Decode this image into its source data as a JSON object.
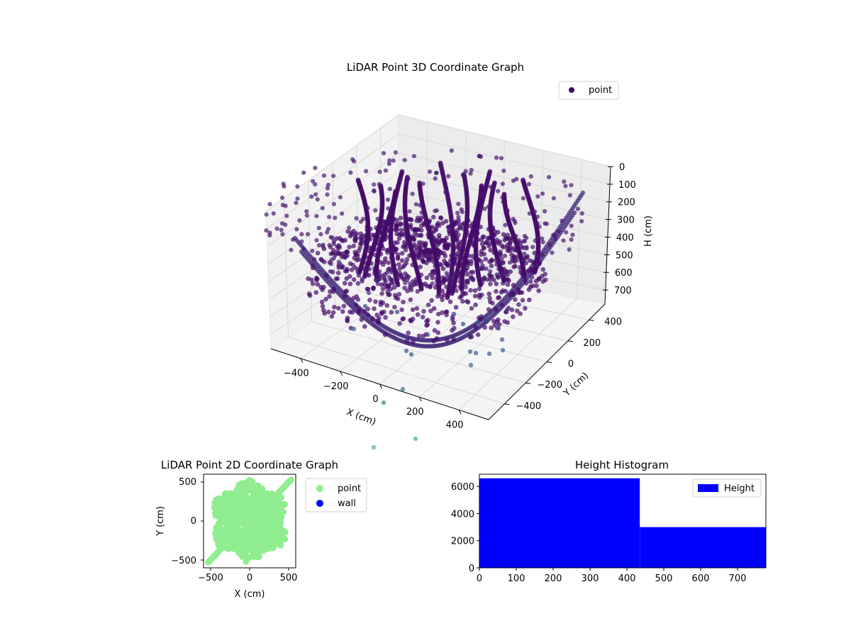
{
  "chart_data": [
    {
      "type": "scatter",
      "projection": "3d",
      "title": "LiDAR Point 3D Coordinate Graph",
      "xlabel": "X (cm)",
      "ylabel": "Y (cm)",
      "zlabel": "H (cm)",
      "xticks": [
        "−400",
        "−200",
        "0",
        "200",
        "400"
      ],
      "yticks": [
        "−400",
        "−200",
        "0",
        "200",
        "400"
      ],
      "zticks": [
        "0",
        "100",
        "200",
        "300",
        "400",
        "500",
        "600",
        "700"
      ],
      "xlim": [
        -550,
        550
      ],
      "ylim": [
        -550,
        550
      ],
      "zlim": [
        0,
        780
      ],
      "z_inverted": true,
      "grid": true,
      "legend": {
        "position": "upper-right",
        "entries": [
          {
            "name": "point",
            "color": "#440a68"
          }
        ]
      },
      "colormap": "viridis",
      "series": [
        {
          "name": "point"
        }
      ]
    },
    {
      "type": "scatter",
      "title": "LiDAR Point 2D Coordinate Graph",
      "xlabel": "X (cm)",
      "ylabel": "Y (cm)",
      "xticks": [
        "−500",
        "0",
        "500"
      ],
      "yticks": [
        "−500",
        "0",
        "500"
      ],
      "xlim": [
        -590,
        590
      ],
      "ylim": [
        -590,
        590
      ],
      "legend": {
        "position": "outside-right",
        "entries": [
          {
            "name": "point",
            "color": "#90ee90"
          },
          {
            "name": "wall",
            "color": "#0000ff"
          }
        ]
      }
    },
    {
      "type": "bar",
      "title": "Height Histogram",
      "xlim": [
        0,
        777
      ],
      "ylim": [
        0,
        6900
      ],
      "xticks": [
        "0",
        "100",
        "200",
        "300",
        "400",
        "500",
        "600",
        "700"
      ],
      "yticks": [
        "0",
        "2000",
        "4000",
        "6000"
      ],
      "bins": [
        {
          "from": 0,
          "to": 435,
          "count": 6600
        },
        {
          "from": 435,
          "to": 777,
          "count": 3000
        }
      ],
      "color": "#0000ff",
      "legend": {
        "position": "upper-right",
        "entries": [
          {
            "name": "Height",
            "color": "#0000ff"
          }
        ]
      }
    }
  ]
}
